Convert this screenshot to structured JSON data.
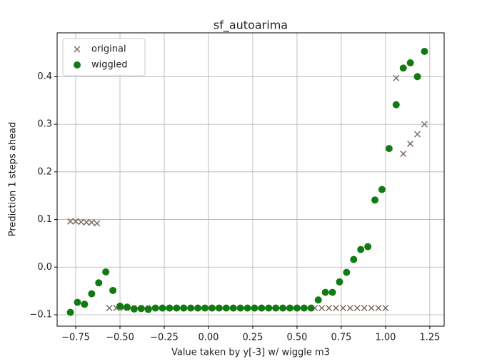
{
  "chart_data": {
    "type": "scatter",
    "title": "sf_autoarima",
    "x_label": "Value taken by y[-3] w/ wiggle m3",
    "y_label": "Prediction 1 steps ahead",
    "xlim": [
      -0.855,
      1.331
    ],
    "ylim": [
      -0.124,
      0.492
    ],
    "xticks": [
      {
        "value": -0.75,
        "label": "−0.75"
      },
      {
        "value": -0.5,
        "label": "−0.50"
      },
      {
        "value": -0.25,
        "label": "−0.25"
      },
      {
        "value": 0,
        "label": "0.00"
      },
      0.25,
      {
        "value": 0.5,
        "label": "0.50"
      },
      0.75,
      {
        "value": 1,
        "label": "1.00"
      },
      1.25
    ],
    "yticks": [
      {
        "value": -0.1,
        "label": "−0.1"
      },
      {
        "value": 0,
        "label": "0.0"
      },
      0.1,
      0.2,
      0.3,
      0.4
    ],
    "grid": true,
    "legend": "upper left",
    "series": [
      {
        "name": "original",
        "marker": "x",
        "color": "#7d6b63",
        "x": [
          -0.78,
          -0.75,
          -0.72,
          -0.69,
          -0.66,
          -0.63,
          -0.56,
          -0.52,
          -0.48,
          -0.44,
          -0.4,
          -0.36,
          -0.32,
          -0.28,
          -0.24,
          -0.2,
          -0.16,
          -0.12,
          -0.08,
          -0.04,
          0,
          0.04,
          0.08,
          0.12,
          0.16,
          0.2,
          0.24,
          0.28,
          0.32,
          0.36,
          0.4,
          0.44,
          0.48,
          0.52,
          0.56,
          0.6,
          0.64,
          0.68,
          0.72,
          0.76,
          0.8,
          0.84,
          0.88,
          0.92,
          0.96,
          1.0,
          1.06,
          1.1,
          1.14,
          1.18,
          1.22
        ],
        "values": [
          0.096,
          0.096,
          0.095,
          0.094,
          0.094,
          0.092,
          -0.086,
          -0.086,
          -0.086,
          -0.086,
          -0.086,
          -0.086,
          -0.086,
          -0.086,
          -0.086,
          -0.086,
          -0.086,
          -0.086,
          -0.086,
          -0.086,
          -0.086,
          -0.086,
          -0.086,
          -0.086,
          -0.086,
          -0.086,
          -0.086,
          -0.086,
          -0.086,
          -0.086,
          -0.086,
          -0.086,
          -0.086,
          -0.086,
          -0.086,
          -0.086,
          -0.086,
          -0.086,
          -0.086,
          -0.086,
          -0.086,
          -0.086,
          -0.086,
          -0.086,
          -0.086,
          -0.086,
          0.397,
          0.238,
          0.259,
          0.279,
          0.3
        ]
      },
      {
        "name": "wiggled",
        "marker": "o",
        "color": "#117a11",
        "x": [
          -0.78,
          -0.74,
          -0.7,
          -0.66,
          -0.62,
          -0.58,
          -0.54,
          -0.5,
          -0.46,
          -0.42,
          -0.38,
          -0.34,
          -0.3,
          -0.26,
          -0.22,
          -0.18,
          -0.14,
          -0.1,
          -0.06,
          -0.02,
          0.02,
          0.06,
          0.1,
          0.14,
          0.18,
          0.22,
          0.26,
          0.3,
          0.34,
          0.38,
          0.42,
          0.46,
          0.5,
          0.54,
          0.58,
          0.62,
          0.66,
          0.7,
          0.74,
          0.78,
          0.82,
          0.86,
          0.9,
          0.94,
          0.98,
          1.02,
          1.06,
          1.1,
          1.14,
          1.18,
          1.22
        ],
        "values": [
          -0.095,
          -0.074,
          -0.078,
          -0.056,
          -0.033,
          -0.01,
          -0.049,
          -0.082,
          -0.084,
          -0.088,
          -0.087,
          -0.089,
          -0.086,
          -0.086,
          -0.086,
          -0.086,
          -0.086,
          -0.086,
          -0.086,
          -0.086,
          -0.086,
          -0.086,
          -0.086,
          -0.086,
          -0.086,
          -0.086,
          -0.086,
          -0.086,
          -0.086,
          -0.086,
          -0.086,
          -0.086,
          -0.086,
          -0.086,
          -0.086,
          -0.069,
          -0.053,
          -0.053,
          -0.031,
          -0.011,
          0.016,
          0.037,
          0.043,
          0.141,
          0.163,
          0.249,
          0.341,
          0.418,
          0.429,
          0.4,
          0.453
        ]
      }
    ]
  }
}
